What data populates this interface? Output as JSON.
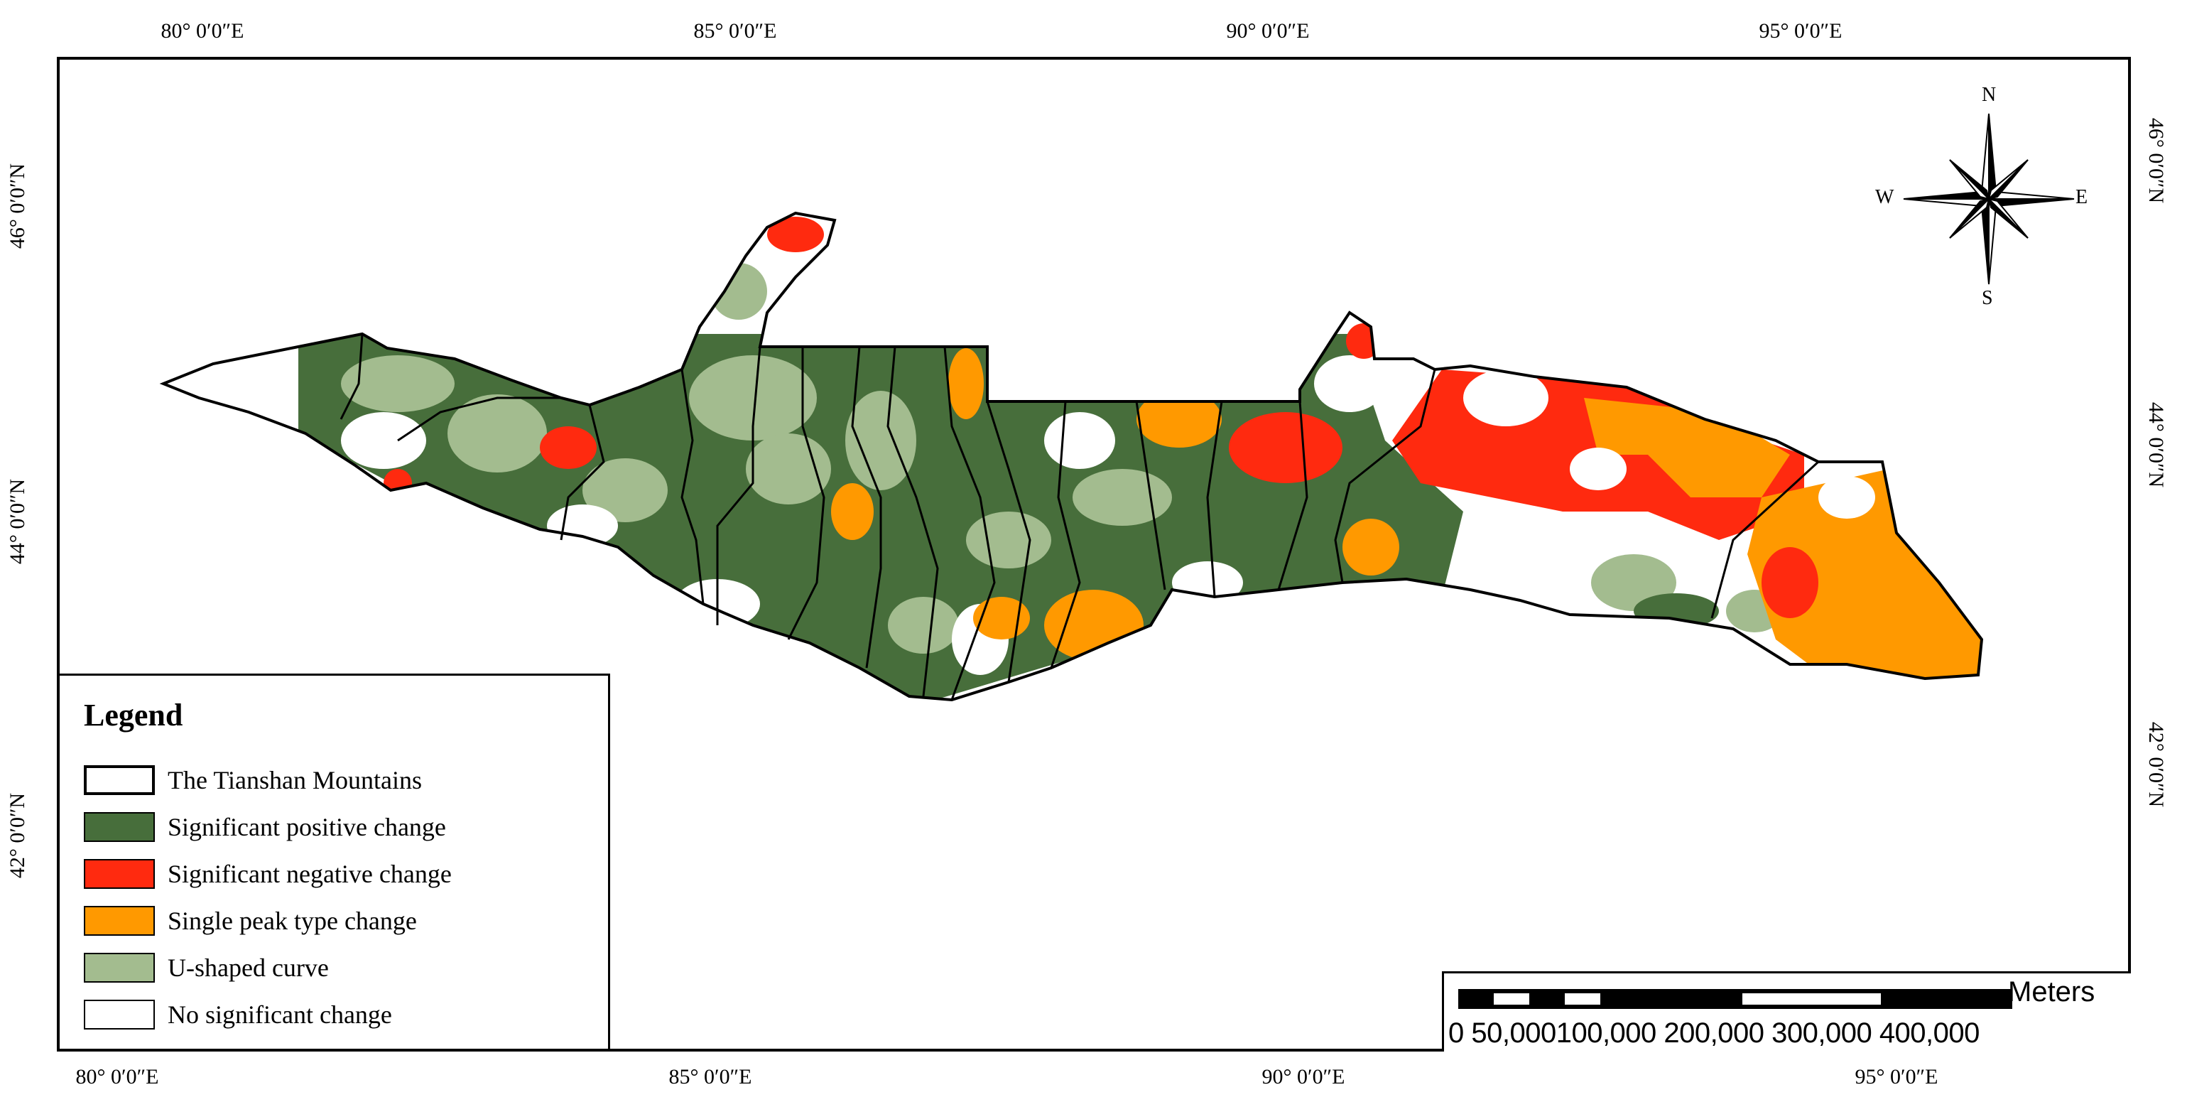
{
  "map": {
    "lon_ticks_top": [
      "80° 0′0″E",
      "85° 0′0″E",
      "90° 0′0″E",
      "95° 0′0″E"
    ],
    "lon_ticks_bottom": [
      "80° 0′0″E",
      "85° 0′0″E",
      "90° 0′0″E",
      "95° 0′0″E"
    ],
    "lat_ticks_left": [
      "46° 0′0″N",
      "44° 0′0″N",
      "42° 0′0″N"
    ],
    "lat_ticks_right": [
      "46° 0′0″N",
      "44° 0′0″N",
      "42° 0′0″N"
    ]
  },
  "legend": {
    "title": "Legend",
    "items": [
      {
        "label": "The Tianshan Mountains",
        "color": "#ffffff"
      },
      {
        "label": "Significant positive change",
        "color": "#476e3b"
      },
      {
        "label": "Significant negative change",
        "color": "#ff2a0f"
      },
      {
        "label": "Single peak type change",
        "color": "#ff9900"
      },
      {
        "label": "U-shaped curve",
        "color": "#a3bc8f"
      },
      {
        "label": "No significant change",
        "color": "#ffffff"
      }
    ]
  },
  "scalebar": {
    "unit": "Meters",
    "labels": "0 50,000100,000 200,000 300,000 400,000"
  },
  "compass": {
    "north": "N",
    "south": "S",
    "east": "E",
    "west": "W"
  }
}
